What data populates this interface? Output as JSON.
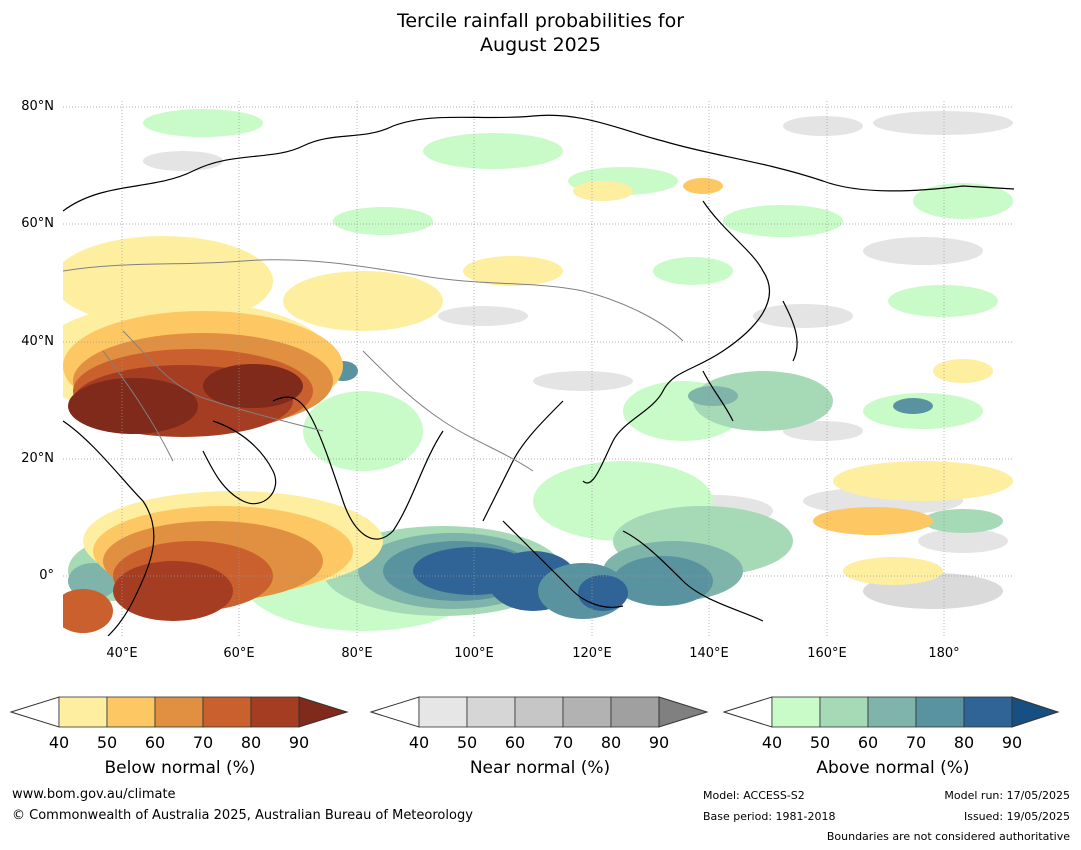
{
  "title_line1": "Tercile rainfall probabilities for",
  "title_line2": "August 2025",
  "map": {
    "lat_labels": [
      "80°N",
      "60°N",
      "40°N",
      "20°N",
      "0°"
    ],
    "lon_labels": [
      "40°E",
      "60°E",
      "80°E",
      "100°E",
      "120°E",
      "140°E",
      "160°E",
      "180°"
    ]
  },
  "legends": [
    {
      "caption": "Below normal (%)",
      "ticks": [
        "40",
        "50",
        "60",
        "70",
        "80",
        "90"
      ],
      "colors": [
        "#fdeea0",
        "#fdc863",
        "#e09040",
        "#c9602e",
        "#a53d22",
        "#7f2a1a"
      ]
    },
    {
      "caption": "Near normal (%)",
      "ticks": [
        "40",
        "50",
        "60",
        "70",
        "80",
        "90"
      ],
      "colors": [
        "#e6e6e6",
        "#d6d6d6",
        "#c6c6c6",
        "#b2b2b2",
        "#a0a0a0",
        "#808080"
      ]
    },
    {
      "caption": "Above normal (%)",
      "ticks": [
        "40",
        "50",
        "60",
        "70",
        "80",
        "90"
      ],
      "colors": [
        "#c8fbc8",
        "#a6d9b6",
        "#7fb4aa",
        "#5a93a0",
        "#316496",
        "#174f82"
      ]
    }
  ],
  "footer": {
    "website": "www.bom.gov.au/climate",
    "copyright": "© Commonwealth of Australia 2025, Australian Bureau of Meteorology",
    "model": "Model: ACCESS-S2",
    "base_period": "Base period: 1981-2018",
    "model_run": "Model run: 17/05/2025",
    "issued": "Issued: 19/05/2025",
    "disclaimer": "Boundaries are not considered authoritative"
  }
}
